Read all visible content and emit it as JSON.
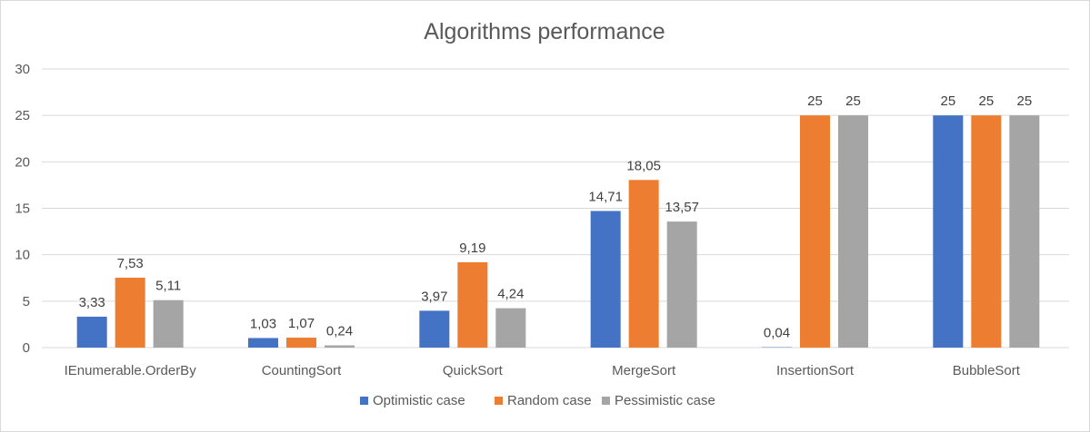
{
  "chart_data": {
    "type": "bar",
    "title": "Algorithms performance",
    "xlabel": "",
    "ylabel": "",
    "ylim": [
      0,
      30
    ],
    "yticks": [
      0,
      5,
      10,
      15,
      20,
      25,
      30
    ],
    "grid": true,
    "legend_position": "bottom",
    "categories": [
      "IEnumerable.OrderBy",
      "CountingSort",
      "QuickSort",
      "MergeSort",
      "InsertionSort",
      "BubbleSort"
    ],
    "series": [
      {
        "name": "Optimistic case",
        "color": "#4472c4",
        "values": [
          3.33,
          1.03,
          3.97,
          14.71,
          0.04,
          25
        ],
        "labels": [
          "3,33",
          "1,03",
          "3,97",
          "14,71",
          "0,04",
          "25"
        ]
      },
      {
        "name": "Random case",
        "color": "#ed7d31",
        "values": [
          7.53,
          1.07,
          9.19,
          18.05,
          25,
          25
        ],
        "labels": [
          "7,53",
          "1,07",
          "9,19",
          "18,05",
          "25",
          "25"
        ]
      },
      {
        "name": "Pessimistic case",
        "color": "#a5a5a5",
        "values": [
          5.11,
          0.24,
          4.24,
          13.57,
          25,
          25
        ],
        "labels": [
          "5,11",
          "0,24",
          "4,24",
          "13,57",
          "25",
          "25"
        ]
      }
    ]
  }
}
